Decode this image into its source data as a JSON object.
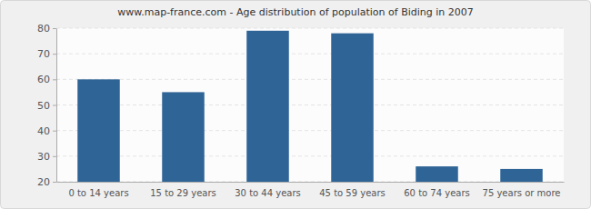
{
  "chart_data": {
    "type": "bar",
    "title": "www.map-france.com - Age distribution of population of Biding in 2007",
    "categories": [
      "0 to 14 years",
      "15 to 29 years",
      "30 to 44 years",
      "45 to 59 years",
      "60 to 74 years",
      "75 years or more"
    ],
    "values": [
      60,
      55,
      79,
      78,
      26,
      25
    ],
    "color": "#2f6496",
    "ylim": [
      20,
      80
    ],
    "yticks": [
      20,
      30,
      40,
      50,
      60,
      70,
      80
    ],
    "grid": true
  }
}
